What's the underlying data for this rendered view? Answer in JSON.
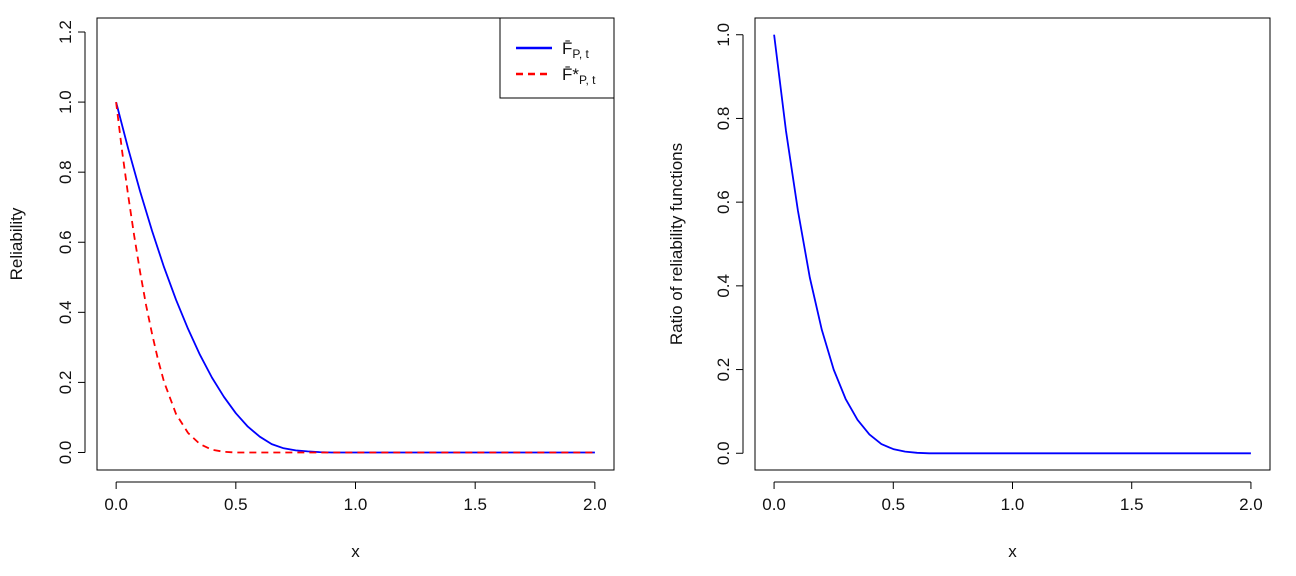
{
  "chart_data": [
    {
      "type": "line",
      "title": "",
      "xlabel": "x",
      "ylabel": "Reliability",
      "xlim": [
        -0.08,
        2.08
      ],
      "ylim": [
        -0.05,
        1.24
      ],
      "xticks": [
        0.0,
        0.5,
        1.0,
        1.5,
        2.0
      ],
      "xtick_labels": [
        "0.0",
        "0.5",
        "1.0",
        "1.5",
        "2.0"
      ],
      "yticks": [
        0.0,
        0.2,
        0.4,
        0.6,
        0.8,
        1.0,
        1.2
      ],
      "ytick_labels": [
        "0.0",
        "0.2",
        "0.4",
        "0.6",
        "0.8",
        "1.0",
        "1.2"
      ],
      "grid": false,
      "legend_position": "top-right",
      "series": [
        {
          "name": "F̄P,t",
          "color": "#0000ff",
          "dash": "solid",
          "x": [
            0.0,
            0.05,
            0.1,
            0.15,
            0.2,
            0.25,
            0.3,
            0.35,
            0.4,
            0.45,
            0.5,
            0.55,
            0.6,
            0.65,
            0.7,
            0.75,
            0.8,
            0.85,
            0.9,
            1.0,
            1.2,
            1.4,
            1.6,
            1.8,
            2.0
          ],
          "y": [
            1.0,
            0.868,
            0.745,
            0.632,
            0.529,
            0.436,
            0.353,
            0.279,
            0.214,
            0.159,
            0.112,
            0.074,
            0.045,
            0.024,
            0.012,
            0.006,
            0.003,
            0.001,
            0.0,
            0.0,
            0.0,
            0.0,
            0.0,
            0.0,
            0.0
          ]
        },
        {
          "name": "F̄*P,t",
          "color": "#ff0000",
          "dash": "dashed",
          "x": [
            0.0,
            0.025,
            0.05,
            0.075,
            0.1,
            0.125,
            0.15,
            0.175,
            0.2,
            0.25,
            0.3,
            0.35,
            0.4,
            0.45,
            0.5,
            0.6,
            0.8,
            1.0,
            1.2,
            1.4,
            1.6,
            1.8,
            2.0
          ],
          "y": [
            1.0,
            0.86,
            0.735,
            0.62,
            0.515,
            0.42,
            0.338,
            0.265,
            0.202,
            0.11,
            0.056,
            0.024,
            0.008,
            0.002,
            0.0,
            0.0,
            0.0,
            0.0,
            0.0,
            0.0,
            0.0,
            0.0,
            0.0
          ]
        }
      ],
      "legend_entries": [
        {
          "main": "F̄",
          "sub": "P, t",
          "color": "#0000ff",
          "dash": "solid"
        },
        {
          "main": "F̄*",
          "sub": "P, t",
          "color": "#ff0000",
          "dash": "dashed"
        }
      ]
    },
    {
      "type": "line",
      "title": "",
      "xlabel": "x",
      "ylabel": "Ratio of reliability functions",
      "xlim": [
        -0.08,
        2.08
      ],
      "ylim": [
        -0.04,
        1.04
      ],
      "xticks": [
        0.0,
        0.5,
        1.0,
        1.5,
        2.0
      ],
      "xtick_labels": [
        "0.0",
        "0.5",
        "1.0",
        "1.5",
        "2.0"
      ],
      "yticks": [
        0.0,
        0.2,
        0.4,
        0.6,
        0.8,
        1.0
      ],
      "ytick_labels": [
        "0.0",
        "0.2",
        "0.4",
        "0.6",
        "0.8",
        "1.0"
      ],
      "grid": false,
      "series": [
        {
          "color": "#0000ff",
          "dash": "solid",
          "x": [
            0.0,
            0.05,
            0.1,
            0.15,
            0.2,
            0.25,
            0.3,
            0.35,
            0.4,
            0.45,
            0.5,
            0.55,
            0.6,
            0.65,
            0.7,
            0.8,
            1.0,
            1.2,
            1.4,
            1.6,
            1.8,
            2.0
          ],
          "y": [
            1.0,
            0.77,
            0.58,
            0.42,
            0.295,
            0.2,
            0.13,
            0.08,
            0.045,
            0.022,
            0.01,
            0.004,
            0.001,
            0.0,
            0.0,
            0.0,
            0.0,
            0.0,
            0.0,
            0.0,
            0.0,
            0.0
          ]
        }
      ]
    }
  ]
}
